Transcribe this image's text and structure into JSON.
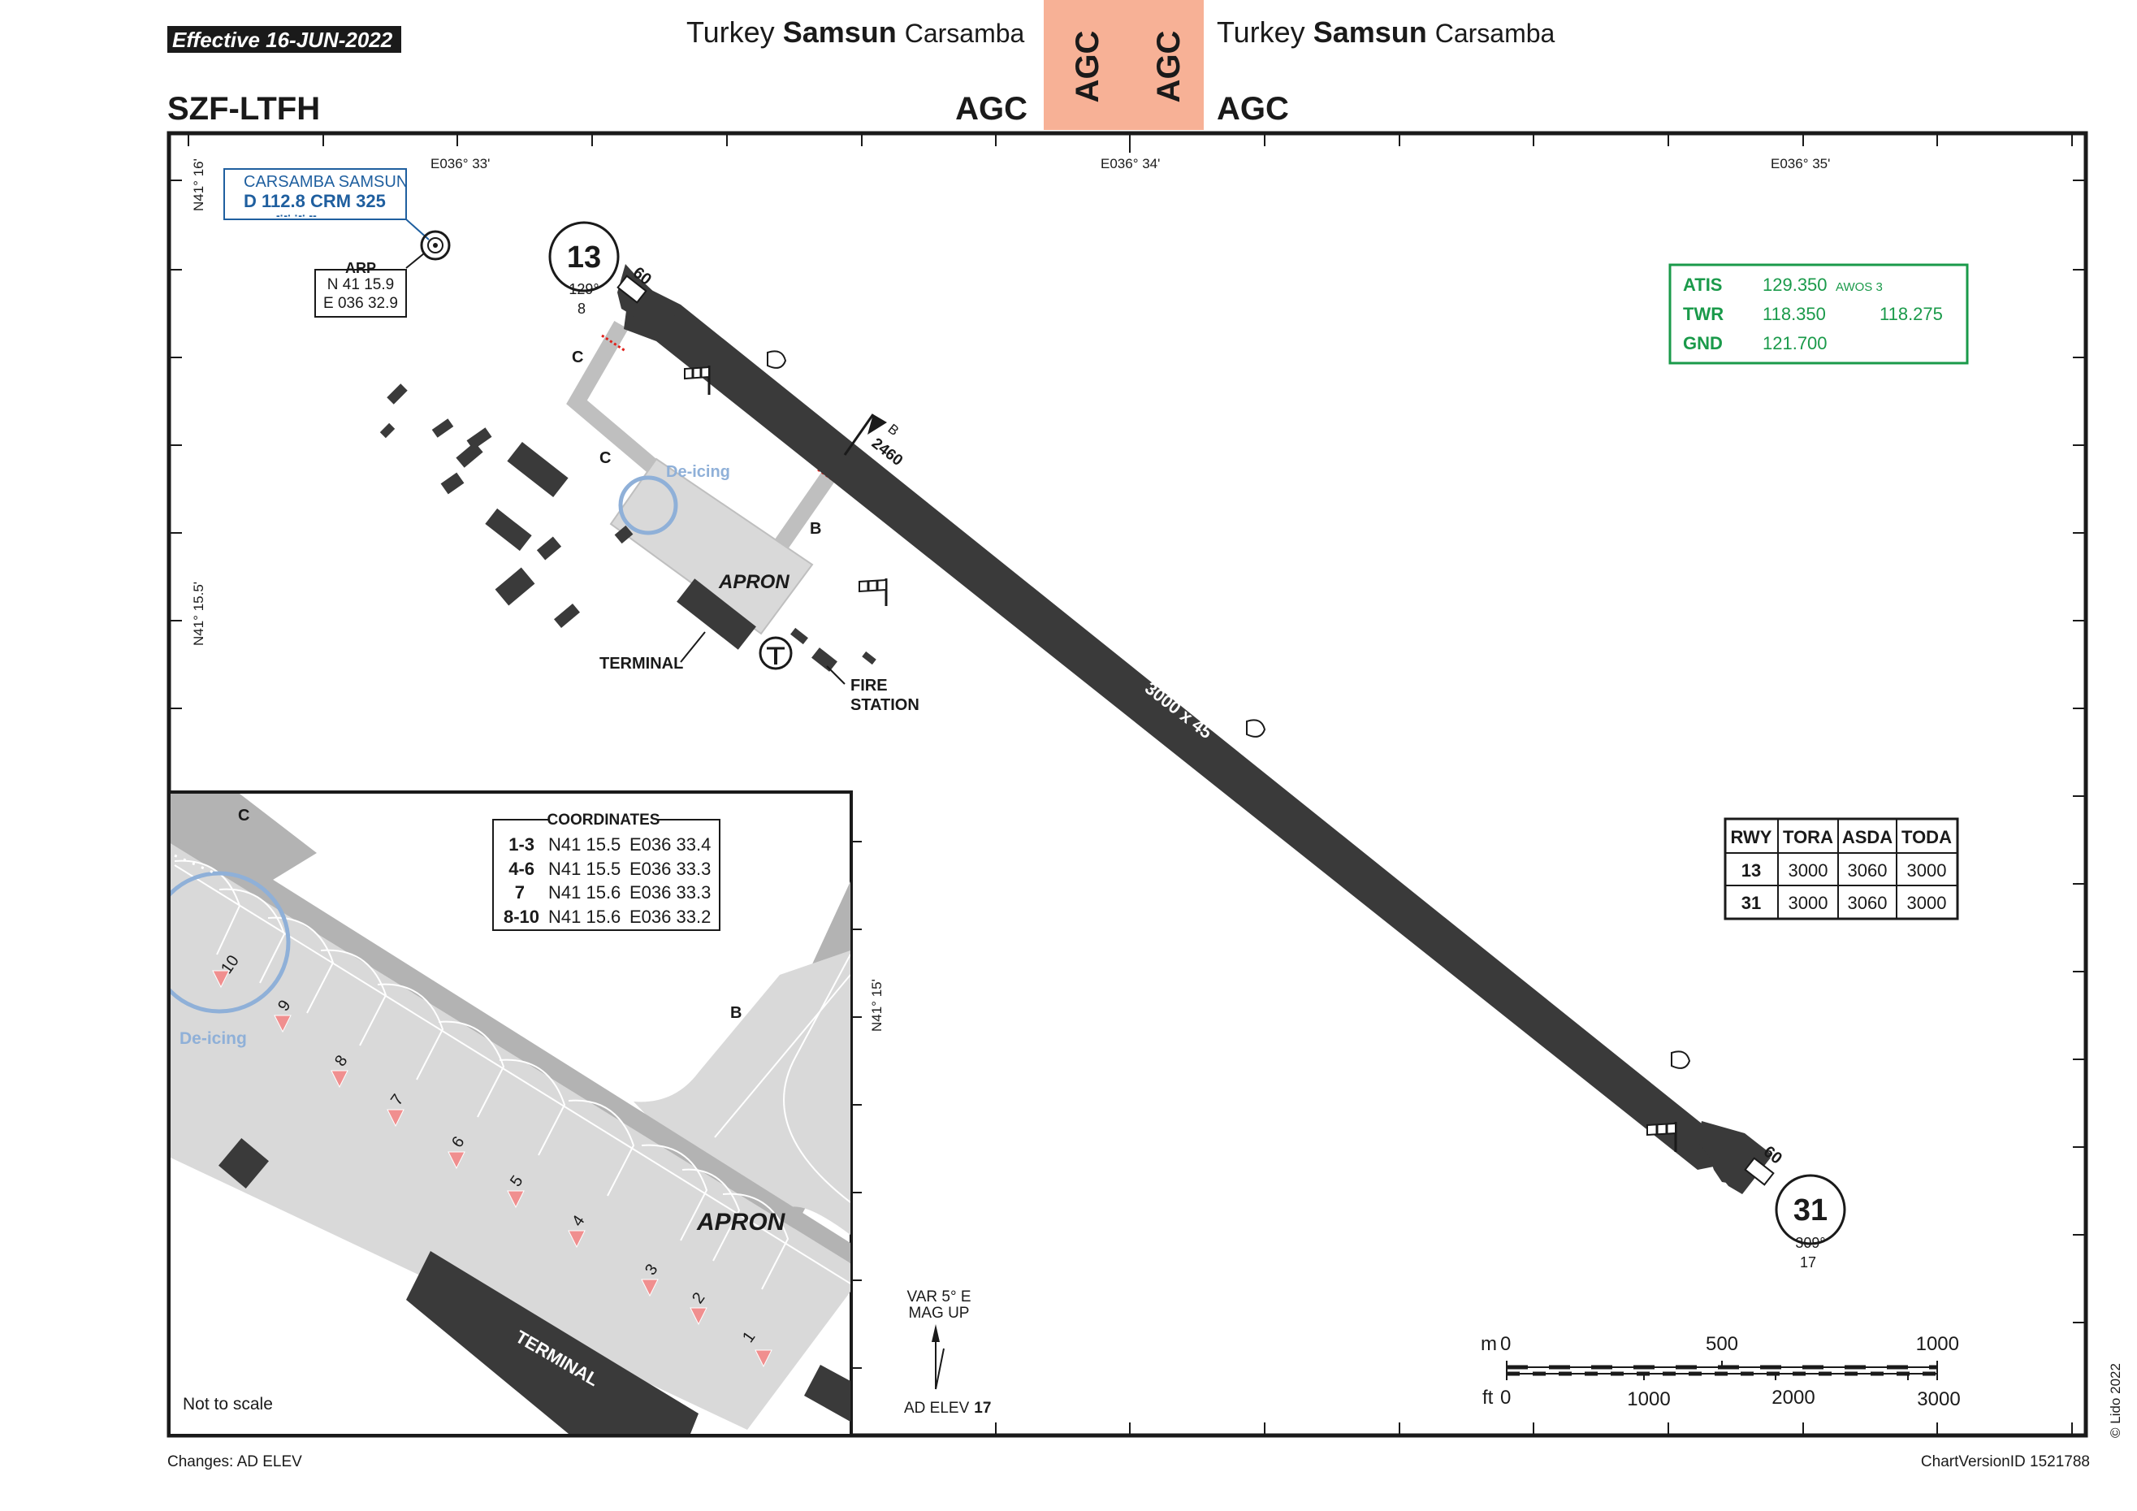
{
  "header": {
    "effective": "Effective  16-JUN-2022",
    "left_country": "Turkey",
    "left_city": "Samsun",
    "left_airport": "Carsamba",
    "right_country": "Turkey",
    "right_city": "Samsun",
    "right_airport": "Carsamba",
    "tab_left": "AGC",
    "tab_right": "AGC",
    "code_left": "AGC",
    "code_right": "AGC",
    "ident": "SZF-LTFH",
    "tab_color": "#f7b196"
  },
  "coords": {
    "top_lon_1": "E036° 33'",
    "top_lon_2": "E036° 34'",
    "top_lon_3": "E036° 35'",
    "lat_top": "N41° 16'",
    "lat_mid": "N41° 15.5'",
    "lat_inset": "N41° 15'"
  },
  "navaid": {
    "name": "CARSAMBA SAMSUN",
    "freq": "D 112.8 CRM 325",
    "morse": "-·-· ·-· --",
    "color": "#1f5f9f"
  },
  "arp": {
    "title": "ARP",
    "lat": "N 41 15.9",
    "lon": "E 036 32.9"
  },
  "runway": {
    "rwy13": "13",
    "rwy13_hdg": "129°",
    "rwy13_elev": "8",
    "rwy31": "31",
    "rwy31_hdg": "309°",
    "rwy31_elev": "17",
    "thr13_width": "60",
    "thr31_width": "60",
    "dimensions": "3000 x 45",
    "intersection_label": "B",
    "intersection_dist": "2460"
  },
  "labels": {
    "twy_c_1": "C",
    "twy_c_2": "C",
    "twy_b": "B",
    "deicing": "De-icing",
    "apron": "APRON",
    "terminal": "TERMINAL",
    "fire_1": "FIRE",
    "fire_2": "STATION"
  },
  "frequencies": {
    "color": "#1a9a4a",
    "rows": [
      {
        "name": "ATIS",
        "f1": "129.350",
        "extra": "AWOS 3",
        "f2": ""
      },
      {
        "name": "TWR",
        "f1": "118.350",
        "extra": "",
        "f2": "118.275"
      },
      {
        "name": "GND",
        "f1": "121.700",
        "extra": "",
        "f2": ""
      }
    ]
  },
  "declared": {
    "headers": [
      "RWY",
      "TORA",
      "ASDA",
      "TODA"
    ],
    "rows": [
      [
        "13",
        "3000",
        "3060",
        "3000"
      ],
      [
        "31",
        "3000",
        "3060",
        "3000"
      ]
    ]
  },
  "inset": {
    "coord_title": "COORDINATES",
    "coord_rows": [
      [
        "1-3",
        "N41 15.5",
        "E036 33.4"
      ],
      [
        "4-6",
        "N41 15.5",
        "E036 33.3"
      ],
      [
        "7",
        "N41 15.6",
        "E036 33.3"
      ],
      [
        "8-10",
        "N41 15.6",
        "E036 33.2"
      ]
    ],
    "twy_c": "C",
    "twy_b": "B",
    "deicing": "De-icing",
    "apron": "APRON",
    "terminal": "TERMINAL",
    "not_to_scale": "Not to scale",
    "stands": [
      "1",
      "2",
      "3",
      "4",
      "5",
      "6",
      "7",
      "8",
      "9",
      "10"
    ]
  },
  "misc": {
    "var_1": "VAR 5° E",
    "var_2": "MAG UP",
    "ad_elev_label": "AD ELEV",
    "ad_elev_value": "17",
    "scale_m": "m",
    "scale_m_ticks": [
      "0",
      "500",
      "1000"
    ],
    "scale_ft": "ft",
    "scale_ft_ticks": [
      "0",
      "1000",
      "2000",
      "3000"
    ]
  },
  "footer": {
    "changes": "Changes: AD ELEV",
    "version": "ChartVersionID 1521788",
    "copyright": "© Lido 2022"
  }
}
